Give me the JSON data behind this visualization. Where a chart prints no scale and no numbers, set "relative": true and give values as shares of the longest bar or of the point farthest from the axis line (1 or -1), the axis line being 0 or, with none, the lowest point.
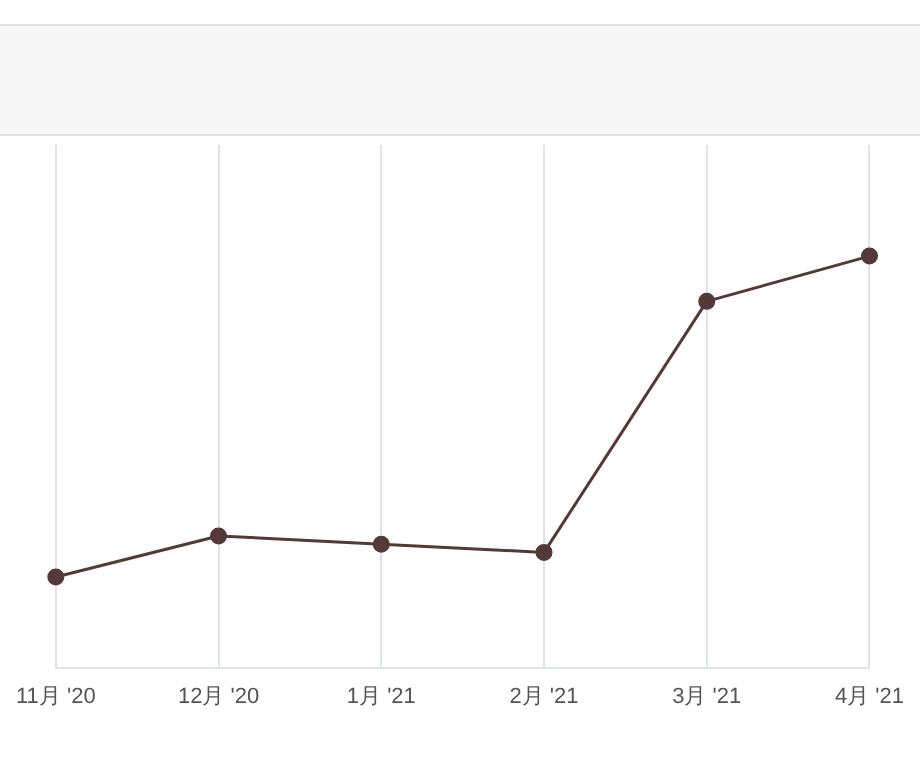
{
  "chart_data": {
    "type": "line",
    "relative": true,
    "categories": [
      "11月 '20",
      "12月 '20",
      "1月 '21",
      "2月 '21",
      "3月 '21",
      "4月 '21"
    ],
    "series": [
      {
        "color": "#553838",
        "values": [
          0.22,
          0.32,
          0.3,
          0.28,
          0.89,
          1
        ]
      }
    ],
    "grid": "x",
    "marker": "circle",
    "legend": false,
    "tick_labels": "x"
  }
}
